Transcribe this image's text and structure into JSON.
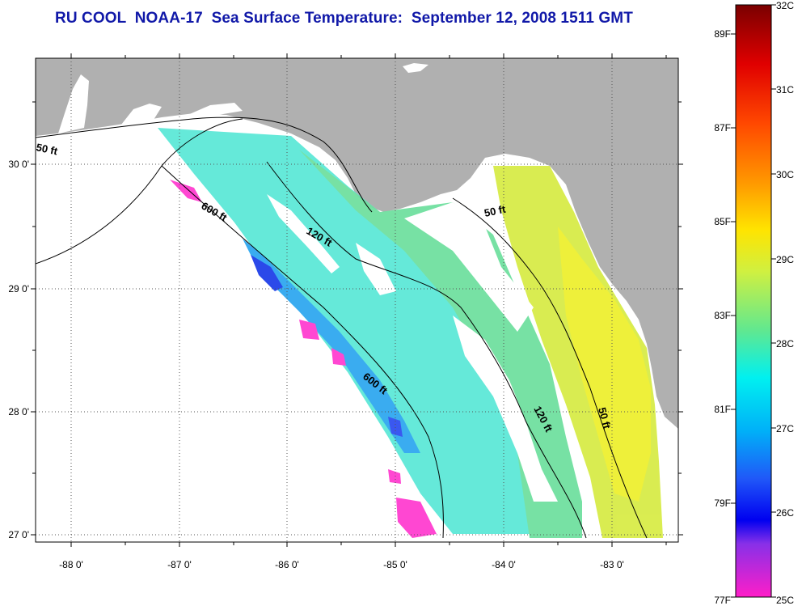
{
  "title": "RU COOL  NOAA-17  Sea Surface Temperature:  September 12, 2008 1511 GMT",
  "map": {
    "lon_ticks": [
      "-88 0'",
      "-87 0'",
      "-86 0'",
      "-85 0'",
      "-84 0'",
      "-83 0'"
    ],
    "lat_ticks": [
      "30 0'",
      "29 0'",
      "28 0'",
      "27 0'"
    ],
    "contours": [
      "50 ft",
      "600 ft",
      "120 ft",
      "50 ft",
      "600 ft",
      "120 ft",
      "50 ft"
    ],
    "land_color": "#b0b0b0",
    "water_color": "#ffffff"
  },
  "colorbar": {
    "fahrenheit_labels": [
      "89F",
      "87F",
      "85F",
      "83F",
      "81F",
      "79F",
      "77F"
    ],
    "celsius_labels": [
      "32C",
      "31C",
      "30C",
      "29C",
      "28C",
      "27C",
      "26C",
      "25C"
    ]
  }
}
